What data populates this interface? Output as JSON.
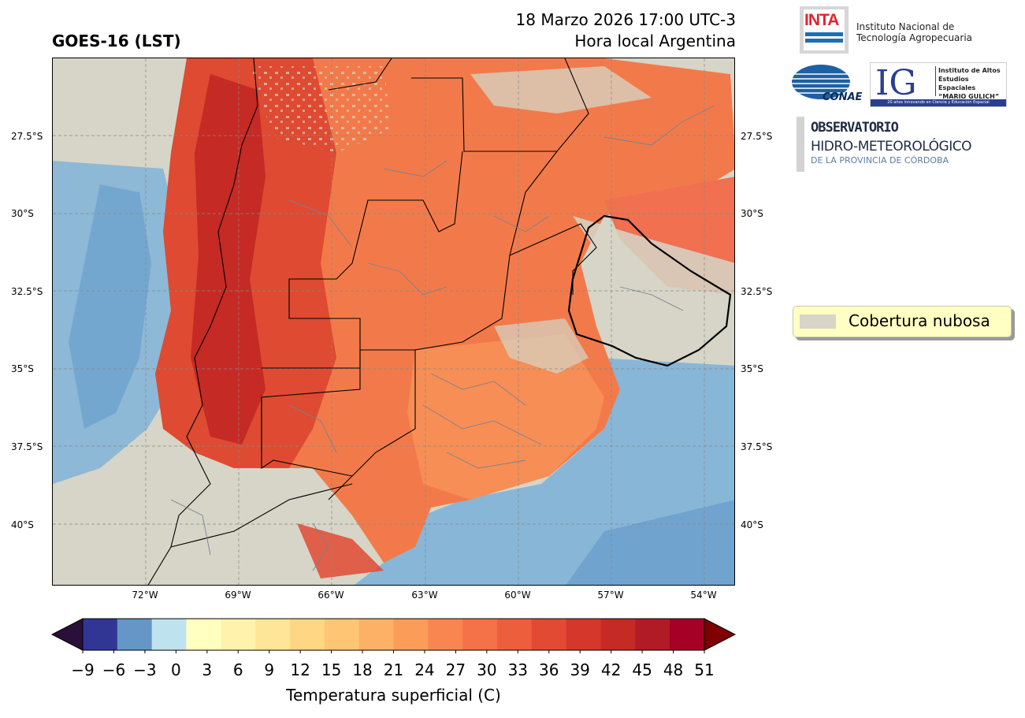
{
  "title": {
    "left": "GOES-16 (LST)",
    "right_line1": "18 Marzo 2026 17:00 UTC-3",
    "right_line2": "Hora local Argentina"
  },
  "map": {
    "lat_labels": [
      "27.5°S",
      "30°S",
      "32.5°S",
      "35°S",
      "37.5°S",
      "40°S"
    ],
    "lon_labels": [
      "72°W",
      "69°W",
      "66°W",
      "63°W",
      "60°W",
      "57°W",
      "54°W"
    ],
    "lat_values": [
      -27.5,
      -30,
      -32.5,
      -35,
      -37.5,
      -40
    ],
    "lon_values": [
      -72,
      -69,
      -66,
      -63,
      -60,
      -57,
      -54
    ],
    "extent": {
      "lon_min": -75,
      "lon_max": -53,
      "lat_min": -42,
      "lat_max": -25
    },
    "cloud_color": "#d6d5c7"
  },
  "legend": {
    "label": "Cobertura nubosa"
  },
  "colorbar": {
    "label": "Temperatura superficial (C)",
    "ticks": [
      "−9",
      "−6",
      "−3",
      "0",
      "3",
      "6",
      "9",
      "12",
      "15",
      "18",
      "21",
      "24",
      "27",
      "30",
      "33",
      "36",
      "39",
      "42",
      "45",
      "48",
      "51"
    ],
    "colors": [
      "#313695",
      "#6497c7",
      "#bfe3ee",
      "#ffffc0",
      "#fff2ad",
      "#fee597",
      "#fed684",
      "#fdc574",
      "#fdb166",
      "#fc9c59",
      "#f98650",
      "#f57148",
      "#ed5e3d",
      "#e24a33",
      "#d5382a",
      "#c62a24",
      "#b11b26",
      "#a50026"
    ],
    "under_color": "#2a0f3a",
    "over_color": "#7f0000"
  },
  "logos": {
    "inta_mark": "INTA",
    "inta_line1": "Instituto Nacional de",
    "inta_line2": "Tecnología Agropecuaria",
    "conae_mark": "CONAE",
    "ig_mark": "IG",
    "ig_line1": "Instituto de Altos",
    "ig_line2": "Estudios Espaciales",
    "ig_line3": "“MARIO GULICH”",
    "ig_tagline": "20 años innovando en Ciencia y Educación Espacial",
    "obs_line1": "OBSERVATORIO",
    "obs_line2": "HIDRO-METEOROLÓGICO",
    "obs_line3": "DE LA PROVINCIA DE CÓRDOBA"
  }
}
